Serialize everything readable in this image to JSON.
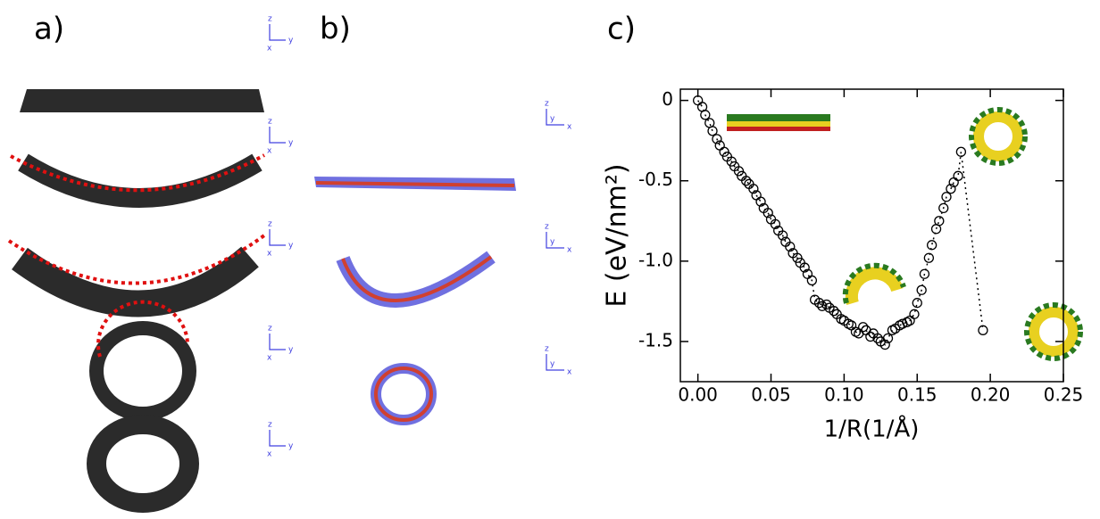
{
  "panel_a": {
    "label": "a)",
    "axes": [
      [
        "z",
        "y",
        "x"
      ],
      [
        "z",
        "y",
        "x"
      ],
      [
        "z",
        "y",
        "x"
      ],
      [
        "z",
        "y",
        "x"
      ],
      [
        "z",
        "y",
        "x"
      ]
    ]
  },
  "panel_b": {
    "label": "b)",
    "axes": [
      [
        "z",
        "y",
        "x"
      ],
      [
        "z",
        "y",
        "x"
      ],
      [
        "z",
        "y",
        "x"
      ]
    ]
  },
  "chart_data": {
    "type": "scatter",
    "panel_label": "c)",
    "x_label": "1/R(1/Å)",
    "y_label": "E (eV/nm²)",
    "xlim": [
      -0.012,
      0.25
    ],
    "ylim": [
      -1.75,
      0.07
    ],
    "xticks": [
      {
        "value": 0,
        "label": "0.00"
      },
      {
        "value": 0.05,
        "label": "0.05"
      },
      {
        "value": 0.1,
        "label": "0.10"
      },
      {
        "value": 0.15,
        "label": "0.15"
      },
      {
        "value": 0.2,
        "label": "0.20"
      },
      {
        "value": 0.25,
        "label": "0.25"
      }
    ],
    "yticks": [
      0,
      -0.5,
      {
        "value": -1,
        "label": "-1.0"
      },
      -1.5
    ],
    "line_style": "dotted",
    "series": [
      {
        "color": "#000000",
        "x": [
          0,
          0.003,
          0.005,
          0.008,
          0.01,
          0.013,
          0.015,
          0.018,
          0.02,
          0.023,
          0.025,
          0.028,
          0.03,
          0.033,
          0.035,
          0.038,
          0.04,
          0.043,
          0.045,
          0.048,
          0.05,
          0.053,
          0.055,
          0.058,
          0.06,
          0.063,
          0.065,
          0.068,
          0.07,
          0.073,
          0.075,
          0.078,
          0.08,
          0.083,
          0.085,
          0.088,
          0.09,
          0.093,
          0.095,
          0.098,
          0.1,
          0.103,
          0.105,
          0.108,
          0.11,
          0.113,
          0.115,
          0.118,
          0.12,
          0.123,
          0.125,
          0.128,
          0.13,
          0.133,
          0.135,
          0.138,
          0.14,
          0.143,
          0.145,
          0.148,
          0.15,
          0.153,
          0.155,
          0.158,
          0.16,
          0.163,
          0.165,
          0.168,
          0.17,
          0.173,
          0.175,
          0.178,
          0.18,
          0.195
        ],
        "y": [
          0,
          -0.04,
          -0.09,
          -0.14,
          -0.19,
          -0.24,
          -0.28,
          -0.32,
          -0.35,
          -0.38,
          -0.41,
          -0.44,
          -0.47,
          -0.5,
          -0.52,
          -0.55,
          -0.59,
          -0.63,
          -0.67,
          -0.7,
          -0.74,
          -0.77,
          -0.81,
          -0.84,
          -0.88,
          -0.91,
          -0.95,
          -0.98,
          -1.01,
          -1.04,
          -1.08,
          -1.12,
          -1.24,
          -1.26,
          -1.28,
          -1.27,
          -1.29,
          -1.31,
          -1.33,
          -1.36,
          -1.37,
          -1.39,
          -1.4,
          -1.44,
          -1.45,
          -1.41,
          -1.43,
          -1.47,
          -1.45,
          -1.48,
          -1.5,
          -1.52,
          -1.48,
          -1.43,
          -1.42,
          -1.4,
          -1.39,
          -1.38,
          -1.37,
          -1.33,
          -1.26,
          -1.18,
          -1.08,
          -0.98,
          -0.9,
          -0.8,
          -0.75,
          -0.67,
          -0.6,
          -0.55,
          -0.51,
          -0.47,
          -0.32,
          -1.43
        ]
      }
    ]
  }
}
